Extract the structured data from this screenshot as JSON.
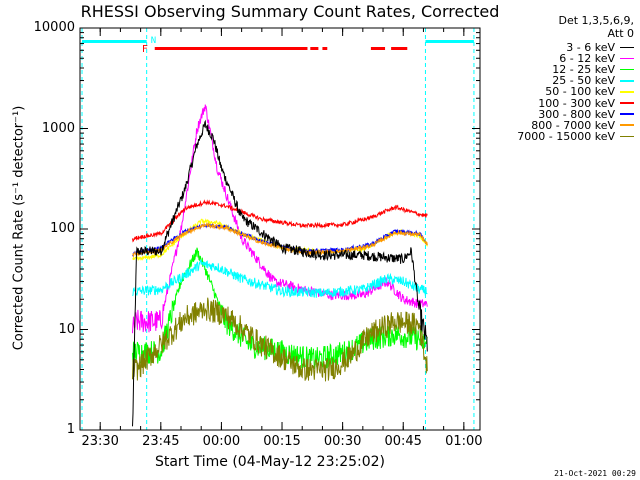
{
  "chart_data": {
    "type": "line",
    "title": "RHESSI Observing Summary Count Rates, Corrected",
    "xlabel": "Start Time (04-May-12 23:25:02)",
    "ylabel": "Corrected Count Rate (s⁻¹ detector⁻¹)",
    "yscale": "log",
    "ylim": [
      1,
      10000
    ],
    "xlim_minutes": [
      0,
      99
    ],
    "x_tick_labels": [
      "23:30",
      "23:45",
      "00:00",
      "00:15",
      "00:30",
      "00:45",
      "01:00"
    ],
    "x_tick_minutes": [
      5,
      20,
      35,
      50,
      65,
      80,
      95
    ],
    "y_tick_labels": [
      "1",
      "10",
      "100",
      "1000",
      "10000"
    ],
    "y_tick_values": [
      1,
      10,
      100,
      1000,
      10000
    ],
    "legend_header": [
      "Det 1,3,5,6,9,",
      "Att 0"
    ],
    "flags": {
      "N_label": "N",
      "F_label": "F"
    },
    "series": [
      {
        "name": "3 - 6 keV",
        "color": "#000000",
        "points": [
          [
            13,
            1
          ],
          [
            14,
            60
          ],
          [
            20,
            60
          ],
          [
            26,
            250
          ],
          [
            29,
            700
          ],
          [
            31,
            1100
          ],
          [
            33,
            800
          ],
          [
            35,
            400
          ],
          [
            40,
            130
          ],
          [
            50,
            65
          ],
          [
            60,
            55
          ],
          [
            70,
            55
          ],
          [
            80,
            50
          ],
          [
            82,
            60
          ],
          [
            84,
            15
          ],
          [
            86,
            7
          ]
        ]
      },
      {
        "name": "6 - 12 keV",
        "color": "#ff00ff",
        "points": [
          [
            13,
            10
          ],
          [
            14,
            12
          ],
          [
            20,
            12
          ],
          [
            25,
            100
          ],
          [
            29,
            1000
          ],
          [
            31,
            1700
          ],
          [
            34,
            400
          ],
          [
            40,
            80
          ],
          [
            48,
            30
          ],
          [
            55,
            25
          ],
          [
            62,
            22
          ],
          [
            70,
            22
          ],
          [
            76,
            30
          ],
          [
            80,
            20
          ],
          [
            84,
            18
          ],
          [
            86,
            18
          ]
        ]
      },
      {
        "name": "12 - 25 keV",
        "color": "#00ff00",
        "points": [
          [
            13,
            6
          ],
          [
            14,
            6
          ],
          [
            20,
            6
          ],
          [
            25,
            30
          ],
          [
            29,
            60
          ],
          [
            31,
            40
          ],
          [
            36,
            12
          ],
          [
            42,
            7
          ],
          [
            50,
            6
          ],
          [
            58,
            5
          ],
          [
            66,
            6
          ],
          [
            72,
            8
          ],
          [
            78,
            9
          ],
          [
            84,
            8
          ],
          [
            86,
            7
          ]
        ]
      },
      {
        "name": "25 - 50 keV",
        "color": "#00ffff",
        "points": [
          [
            13,
            24
          ],
          [
            14,
            24
          ],
          [
            20,
            25
          ],
          [
            26,
            35
          ],
          [
            30,
            45
          ],
          [
            34,
            42
          ],
          [
            40,
            32
          ],
          [
            50,
            24
          ],
          [
            60,
            23
          ],
          [
            70,
            25
          ],
          [
            76,
            32
          ],
          [
            80,
            30
          ],
          [
            84,
            25
          ],
          [
            86,
            24
          ]
        ]
      },
      {
        "name": "50 - 100 keV",
        "color": "#ffff00",
        "points": [
          [
            13,
            50
          ],
          [
            14,
            50
          ],
          [
            20,
            55
          ],
          [
            26,
            90
          ],
          [
            30,
            120
          ],
          [
            34,
            115
          ],
          [
            40,
            90
          ],
          [
            50,
            65
          ],
          [
            60,
            60
          ],
          [
            70,
            62
          ],
          [
            76,
            85
          ],
          [
            80,
            95
          ],
          [
            84,
            85
          ],
          [
            86,
            70
          ]
        ]
      },
      {
        "name": "100 - 300 keV",
        "color": "#ff0000",
        "points": [
          [
            13,
            78
          ],
          [
            14,
            82
          ],
          [
            20,
            90
          ],
          [
            26,
            160
          ],
          [
            31,
            185
          ],
          [
            36,
            170
          ],
          [
            45,
            125
          ],
          [
            55,
            108
          ],
          [
            65,
            110
          ],
          [
            72,
            130
          ],
          [
            78,
            165
          ],
          [
            84,
            140
          ],
          [
            86,
            135
          ]
        ]
      },
      {
        "name": "300 - 800 keV",
        "color": "#0000ff",
        "points": [
          [
            13,
            55
          ],
          [
            14,
            58
          ],
          [
            20,
            65
          ],
          [
            26,
            95
          ],
          [
            31,
            110
          ],
          [
            36,
            105
          ],
          [
            45,
            75
          ],
          [
            55,
            60
          ],
          [
            65,
            62
          ],
          [
            72,
            70
          ],
          [
            78,
            95
          ],
          [
            84,
            90
          ],
          [
            86,
            72
          ]
        ]
      },
      {
        "name": "800 - 7000 keV",
        "color": "#ff9900",
        "points": [
          [
            13,
            55
          ],
          [
            14,
            57
          ],
          [
            20,
            62
          ],
          [
            26,
            92
          ],
          [
            31,
            110
          ],
          [
            36,
            103
          ],
          [
            45,
            73
          ],
          [
            55,
            58
          ],
          [
            65,
            60
          ],
          [
            72,
            68
          ],
          [
            78,
            92
          ],
          [
            84,
            88
          ],
          [
            86,
            70
          ]
        ]
      },
      {
        "name": "7000 - 15000 keV",
        "color": "#808000",
        "points": [
          [
            13,
            4
          ],
          [
            14,
            4
          ],
          [
            20,
            7
          ],
          [
            26,
            13
          ],
          [
            31,
            16
          ],
          [
            36,
            14
          ],
          [
            45,
            7
          ],
          [
            55,
            4
          ],
          [
            62,
            4
          ],
          [
            66,
            5
          ],
          [
            72,
            9
          ],
          [
            78,
            12
          ],
          [
            84,
            11
          ],
          [
            86,
            4
          ]
        ]
      }
    ]
  },
  "footer": {
    "timestamp": "21-Oct-2021 00:29"
  }
}
